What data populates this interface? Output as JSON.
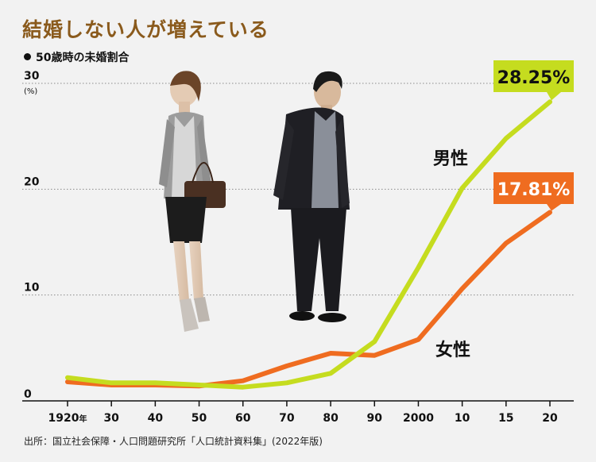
{
  "title": "結婚しない人が増えている",
  "subtitle": "50歳時の未婚割合",
  "source": "出所：国立社会保障・人口問題研究所「人口統計資料集」(2022年版)",
  "colors": {
    "male": "#c5dc1f",
    "female": "#ef6c20",
    "title": "#8a5a1c"
  },
  "chart_data": {
    "type": "line",
    "title": "結婚しない人が増えている",
    "subtitle": "50歳時の未婚割合",
    "ylabel": "(%)",
    "ylim": [
      0,
      30
    ],
    "yticks": [
      "0",
      "10",
      "20",
      "30"
    ],
    "categories": [
      "1920年",
      "30",
      "40",
      "50",
      "60",
      "70",
      "80",
      "90",
      "2000",
      "10",
      "15",
      "20"
    ],
    "series": [
      {
        "name": "男性",
        "color": "#c5dc1f",
        "values": [
          2.2,
          1.7,
          1.7,
          1.5,
          1.3,
          1.7,
          2.6,
          5.6,
          12.6,
          20.1,
          24.8,
          28.25
        ]
      },
      {
        "name": "女性",
        "color": "#ef6c20",
        "values": [
          1.8,
          1.5,
          1.5,
          1.4,
          1.9,
          3.3,
          4.5,
          4.3,
          5.8,
          10.6,
          14.9,
          17.81
        ]
      }
    ],
    "end_labels": [
      "28.25%",
      "17.81%"
    ],
    "grid": true,
    "legend": "inline-labels"
  }
}
